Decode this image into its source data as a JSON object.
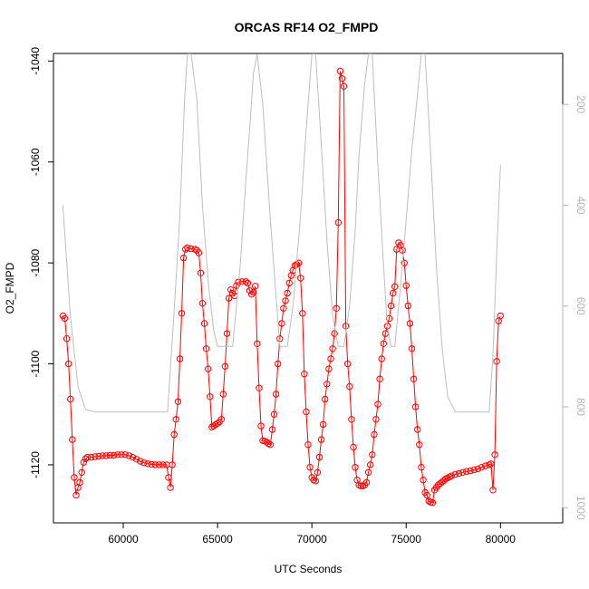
{
  "chart_data": {
    "type": "scatter",
    "title": "ORCAS RF14 O2_FMPD",
    "xlabel": "UTC Seconds",
    "ylabel": "O2_FMPD",
    "xlim": [
      56300,
      83300
    ],
    "ylim": [
      -1131.5,
      -1038.5
    ],
    "x_ticks": [
      60000,
      65000,
      70000,
      75000,
      80000
    ],
    "y_ticks": [
      -1120,
      -1100,
      -1080,
      -1060,
      -1040
    ],
    "y2_ticks": [
      200,
      400,
      600,
      800,
      1000
    ],
    "y2lim": [
      1030,
      99
    ],
    "grid": false,
    "series": [
      {
        "kind": "line+points",
        "color": "#ff0000",
        "points": [
          [
            56800,
            -1090.5
          ],
          [
            56900,
            -1091
          ],
          [
            57000,
            -1095
          ],
          [
            57100,
            -1100
          ],
          [
            57200,
            -1107
          ],
          [
            57300,
            -1115
          ],
          [
            57400,
            -1122.5
          ],
          [
            57500,
            -1126
          ],
          [
            57600,
            -1124.5
          ],
          [
            57700,
            -1123.5
          ],
          [
            57800,
            -1121.5
          ],
          [
            57900,
            -1119.5
          ],
          [
            58000,
            -1118.8
          ],
          [
            58100,
            -1118.5
          ],
          [
            58300,
            -1118.5
          ],
          [
            58500,
            -1118.4
          ],
          [
            58700,
            -1118.3
          ],
          [
            58900,
            -1118.2
          ],
          [
            59100,
            -1118.2
          ],
          [
            59300,
            -1118.1
          ],
          [
            59500,
            -1118.1
          ],
          [
            59700,
            -1118
          ],
          [
            59900,
            -1118
          ],
          [
            60100,
            -1118
          ],
          [
            60300,
            -1118.2
          ],
          [
            60500,
            -1118.5
          ],
          [
            60700,
            -1118.9
          ],
          [
            60900,
            -1119.3
          ],
          [
            61100,
            -1119.6
          ],
          [
            61300,
            -1119.8
          ],
          [
            61500,
            -1119.9
          ],
          [
            61700,
            -1120
          ],
          [
            61900,
            -1120
          ],
          [
            62100,
            -1120
          ],
          [
            62300,
            -1120
          ],
          [
            62400,
            -1122.5
          ],
          [
            62500,
            -1124.5
          ],
          [
            62600,
            -1120
          ],
          [
            62700,
            -1114
          ],
          [
            62800,
            -1111
          ],
          [
            62900,
            -1107.5
          ],
          [
            63000,
            -1099
          ],
          [
            63100,
            -1090
          ],
          [
            63200,
            -1079
          ],
          [
            63300,
            -1077.3
          ],
          [
            63400,
            -1077
          ],
          [
            63600,
            -1077.2
          ],
          [
            63800,
            -1077.3
          ],
          [
            63900,
            -1077.5
          ],
          [
            64000,
            -1078
          ],
          [
            64100,
            -1082
          ],
          [
            64200,
            -1088
          ],
          [
            64300,
            -1092
          ],
          [
            64400,
            -1097
          ],
          [
            64500,
            -1101
          ],
          [
            64600,
            -1106.5
          ],
          [
            64700,
            -1112.5
          ],
          [
            64800,
            -1112.3
          ],
          [
            64900,
            -1112
          ],
          [
            65000,
            -1111.8
          ],
          [
            65100,
            -1111.5
          ],
          [
            65200,
            -1111
          ],
          [
            65300,
            -1106
          ],
          [
            65400,
            -1100.5
          ],
          [
            65500,
            -1094
          ],
          [
            65600,
            -1087
          ],
          [
            65700,
            -1085.3
          ],
          [
            65800,
            -1086
          ],
          [
            65900,
            -1086.5
          ],
          [
            66000,
            -1084.5
          ],
          [
            66100,
            -1083.8
          ],
          [
            66300,
            -1083.7
          ],
          [
            66500,
            -1083.7
          ],
          [
            66600,
            -1084
          ],
          [
            66700,
            -1085.5
          ],
          [
            66800,
            -1086.2
          ],
          [
            66900,
            -1085.8
          ],
          [
            67000,
            -1084.6
          ],
          [
            67100,
            -1096
          ],
          [
            67200,
            -1104.8
          ],
          [
            67300,
            -1112.3
          ],
          [
            67400,
            -1115.2
          ],
          [
            67500,
            -1115.3
          ],
          [
            67600,
            -1115.5
          ],
          [
            67700,
            -1115.8
          ],
          [
            67800,
            -1116
          ],
          [
            67900,
            -1113
          ],
          [
            68000,
            -1110
          ],
          [
            68100,
            -1106
          ],
          [
            68200,
            -1100
          ],
          [
            68300,
            -1095
          ],
          [
            68400,
            -1092
          ],
          [
            68500,
            -1089
          ],
          [
            68600,
            -1087.5
          ],
          [
            68700,
            -1086
          ],
          [
            68800,
            -1084
          ],
          [
            68900,
            -1082.5
          ],
          [
            69000,
            -1081.5
          ],
          [
            69100,
            -1080.5
          ],
          [
            69200,
            -1080.3
          ],
          [
            69300,
            -1080
          ],
          [
            69400,
            -1083
          ],
          [
            69500,
            -1090
          ],
          [
            69600,
            -1102
          ],
          [
            69700,
            -1109.5
          ],
          [
            69800,
            -1116
          ],
          [
            69900,
            -1120.5
          ],
          [
            70000,
            -1122.5
          ],
          [
            70100,
            -1123
          ],
          [
            70200,
            -1123.2
          ],
          [
            70300,
            -1121.5
          ],
          [
            70400,
            -1118.5
          ],
          [
            70500,
            -1115
          ],
          [
            70600,
            -1112
          ],
          [
            70700,
            -1107
          ],
          [
            70800,
            -1104
          ],
          [
            70900,
            -1101
          ],
          [
            71000,
            -1099
          ],
          [
            71100,
            -1097
          ],
          [
            71200,
            -1094
          ],
          [
            71300,
            -1089
          ],
          [
            71400,
            -1072
          ],
          [
            71500,
            -1042
          ],
          [
            71600,
            -1043.5
          ],
          [
            71700,
            -1045
          ],
          [
            71800,
            -1092.5
          ],
          [
            71900,
            -1100
          ],
          [
            72000,
            -1104.5
          ],
          [
            72100,
            -1111
          ],
          [
            72200,
            -1116.5
          ],
          [
            72300,
            -1120.5
          ],
          [
            72400,
            -1123
          ],
          [
            72500,
            -1124
          ],
          [
            72600,
            -1124.2
          ],
          [
            72700,
            -1124.2
          ],
          [
            72800,
            -1124
          ],
          [
            72900,
            -1123.5
          ],
          [
            73000,
            -1121.5
          ],
          [
            73100,
            -1120
          ],
          [
            73200,
            -1118
          ],
          [
            73300,
            -1114
          ],
          [
            73400,
            -1111
          ],
          [
            73500,
            -1108
          ],
          [
            73600,
            -1103
          ],
          [
            73700,
            -1099
          ],
          [
            73800,
            -1096
          ],
          [
            73900,
            -1094
          ],
          [
            74000,
            -1092.5
          ],
          [
            74100,
            -1091
          ],
          [
            74200,
            -1088.5
          ],
          [
            74300,
            -1086
          ],
          [
            74400,
            -1084.7
          ],
          [
            74500,
            -1077.3
          ],
          [
            74600,
            -1076
          ],
          [
            74700,
            -1076.5
          ],
          [
            74800,
            -1077.5
          ],
          [
            74900,
            -1080
          ],
          [
            75000,
            -1084.5
          ],
          [
            75100,
            -1088.5
          ],
          [
            75200,
            -1092
          ],
          [
            75300,
            -1097
          ],
          [
            75400,
            -1103
          ],
          [
            75500,
            -1108.5
          ],
          [
            75600,
            -1113
          ],
          [
            75700,
            -1116
          ],
          [
            75800,
            -1120.5
          ],
          [
            75900,
            -1123
          ],
          [
            76000,
            -1125.5
          ],
          [
            76100,
            -1126
          ],
          [
            76200,
            -1127.2
          ],
          [
            76300,
            -1127.4
          ],
          [
            76400,
            -1127.5
          ],
          [
            76500,
            -1125
          ],
          [
            76600,
            -1124.5
          ],
          [
            76700,
            -1124
          ],
          [
            76800,
            -1123.7
          ],
          [
            76900,
            -1123.4
          ],
          [
            77000,
            -1123.1
          ],
          [
            77100,
            -1122.8
          ],
          [
            77200,
            -1122.6
          ],
          [
            77300,
            -1122.4
          ],
          [
            77400,
            -1122.2
          ],
          [
            77600,
            -1121.9
          ],
          [
            77800,
            -1121.7
          ],
          [
            78000,
            -1121.5
          ],
          [
            78200,
            -1121.3
          ],
          [
            78400,
            -1121.2
          ],
          [
            78600,
            -1121
          ],
          [
            78800,
            -1120.8
          ],
          [
            79000,
            -1120.5
          ],
          [
            79200,
            -1120.2
          ],
          [
            79400,
            -1120
          ],
          [
            79500,
            -1119.8
          ],
          [
            79600,
            -1125
          ],
          [
            79700,
            -1118
          ],
          [
            79800,
            -1099.5
          ],
          [
            79900,
            -1091.5
          ],
          [
            80000,
            -1090.5
          ]
        ]
      },
      {
        "kind": "line",
        "color": "#bebebe",
        "axis": "right",
        "points": [
          [
            56800,
            400
          ],
          [
            57200,
            620
          ],
          [
            57600,
            760
          ],
          [
            58000,
            805
          ],
          [
            58500,
            810
          ],
          [
            59000,
            810
          ],
          [
            60000,
            810
          ],
          [
            61000,
            810
          ],
          [
            62000,
            810
          ],
          [
            62350,
            810
          ],
          [
            62700,
            610
          ],
          [
            63000,
            420
          ],
          [
            63250,
            190
          ],
          [
            63400,
            100
          ],
          [
            63600,
            100
          ],
          [
            63900,
            190
          ],
          [
            64200,
            400
          ],
          [
            64500,
            550
          ],
          [
            64800,
            650
          ],
          [
            65000,
            680
          ],
          [
            65500,
            680
          ],
          [
            65800,
            680
          ],
          [
            66200,
            520
          ],
          [
            66500,
            350
          ],
          [
            66700,
            250
          ],
          [
            66900,
            140
          ],
          [
            67100,
            100
          ],
          [
            67400,
            200
          ],
          [
            67800,
            430
          ],
          [
            68100,
            580
          ],
          [
            68300,
            680
          ],
          [
            68700,
            680
          ],
          [
            69000,
            600
          ],
          [
            69400,
            420
          ],
          [
            69700,
            250
          ],
          [
            70000,
            100
          ],
          [
            70200,
            100
          ],
          [
            70500,
            280
          ],
          [
            70800,
            470
          ],
          [
            71100,
            620
          ],
          [
            71400,
            680
          ],
          [
            71700,
            680
          ],
          [
            72000,
            600
          ],
          [
            72300,
            450
          ],
          [
            72500,
            300
          ],
          [
            72800,
            160
          ],
          [
            73000,
            100
          ],
          [
            73200,
            100
          ],
          [
            73500,
            320
          ],
          [
            73800,
            520
          ],
          [
            74000,
            640
          ],
          [
            74200,
            680
          ],
          [
            74400,
            680
          ],
          [
            74700,
            560
          ],
          [
            75000,
            430
          ],
          [
            75300,
            290
          ],
          [
            75600,
            180
          ],
          [
            75800,
            100
          ],
          [
            76000,
            100
          ],
          [
            76300,
            300
          ],
          [
            76600,
            520
          ],
          [
            76900,
            680
          ],
          [
            77200,
            780
          ],
          [
            77600,
            810
          ],
          [
            78000,
            810
          ],
          [
            78500,
            810
          ],
          [
            79000,
            810
          ],
          [
            79400,
            810
          ],
          [
            79600,
            700
          ],
          [
            79800,
            500
          ],
          [
            80000,
            320
          ]
        ]
      }
    ]
  }
}
